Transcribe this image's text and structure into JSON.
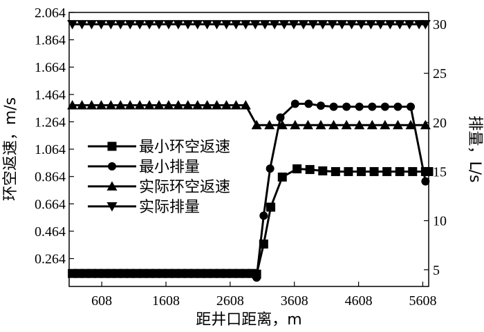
{
  "chart_data": {
    "type": "line",
    "x_ticks": [
      "608",
      "1608",
      "2608",
      "3608",
      "4608",
      "5608"
    ],
    "x_tick_values": [
      608,
      1608,
      2608,
      3608,
      4608,
      5608
    ],
    "xlim": [
      100,
      5700
    ],
    "xlabel": "距井口距离，m",
    "y_left": {
      "label": "环空返速，m/s",
      "ticks": [
        "0.264",
        "0.464",
        "0.664",
        "0.864",
        "1.064",
        "1.264",
        "1.464",
        "1.664",
        "1.864",
        "2.064"
      ],
      "tick_values": [
        0.264,
        0.464,
        0.664,
        0.864,
        1.064,
        1.264,
        1.464,
        1.664,
        1.864,
        2.064
      ],
      "lim": [
        0.06,
        2.064
      ]
    },
    "y_right": {
      "label": "排量，L/s",
      "ticks": [
        "5",
        "10",
        "15",
        "20",
        "25",
        "30"
      ],
      "tick_values": [
        5,
        10,
        15,
        20,
        25,
        30
      ],
      "lim": [
        3.3,
        31.2
      ]
    },
    "grid": false,
    "legend_position": "center-left",
    "series": [
      {
        "name": "最小环空返速",
        "marker": "square",
        "axis": "left",
        "x": [
          150,
          250,
          350,
          450,
          550,
          650,
          750,
          850,
          950,
          1050,
          1150,
          1250,
          1350,
          1450,
          1550,
          1650,
          1750,
          1850,
          1950,
          2050,
          2150,
          2250,
          2350,
          2450,
          2550,
          2650,
          2750,
          2850,
          2950,
          3020,
          3130,
          3240,
          3420,
          3650,
          3850,
          4050,
          4250,
          4450,
          4650,
          4850,
          5050,
          5250,
          5450,
          5650,
          5700
        ],
        "values": [
          0.155,
          0.155,
          0.155,
          0.155,
          0.155,
          0.155,
          0.155,
          0.155,
          0.155,
          0.155,
          0.155,
          0.155,
          0.155,
          0.155,
          0.155,
          0.155,
          0.155,
          0.155,
          0.155,
          0.155,
          0.155,
          0.155,
          0.155,
          0.155,
          0.155,
          0.155,
          0.155,
          0.155,
          0.155,
          0.15,
          0.37,
          0.64,
          0.86,
          0.92,
          0.915,
          0.905,
          0.9,
          0.9,
          0.9,
          0.9,
          0.9,
          0.9,
          0.9,
          0.9,
          0.9
        ]
      },
      {
        "name": "最小排量",
        "marker": "circle",
        "axis": "right",
        "x": [
          3020,
          3130,
          3230,
          3390,
          3620,
          3830,
          4020,
          4220,
          4420,
          4620,
          4820,
          5020,
          5220,
          5420,
          5650
        ],
        "values": [
          4.2,
          10.5,
          15.3,
          20.5,
          21.9,
          21.9,
          21.7,
          21.6,
          21.6,
          21.6,
          21.6,
          21.6,
          21.6,
          21.6,
          14.0
        ]
      },
      {
        "name": "实际环空返速",
        "marker": "triangle-up",
        "axis": "left",
        "x": [
          150,
          300,
          450,
          600,
          750,
          900,
          1050,
          1200,
          1350,
          1500,
          1650,
          1800,
          1950,
          2100,
          2250,
          2400,
          2550,
          2700,
          2850,
          3020,
          3220,
          3420,
          3620,
          3820,
          4020,
          4220,
          4420,
          4620,
          4820,
          5020,
          5220,
          5420,
          5650
        ],
        "values": [
          1.385,
          1.385,
          1.385,
          1.385,
          1.385,
          1.385,
          1.385,
          1.385,
          1.385,
          1.385,
          1.385,
          1.385,
          1.385,
          1.385,
          1.385,
          1.385,
          1.385,
          1.385,
          1.385,
          1.24,
          1.24,
          1.24,
          1.24,
          1.24,
          1.24,
          1.24,
          1.24,
          1.24,
          1.24,
          1.24,
          1.24,
          1.24,
          1.24
        ]
      },
      {
        "name": "实际排量",
        "marker": "triangle-down",
        "axis": "right",
        "x": [
          150,
          300,
          450,
          600,
          750,
          900,
          1050,
          1200,
          1350,
          1500,
          1650,
          1800,
          1950,
          2100,
          2250,
          2400,
          2550,
          2700,
          2850,
          3000,
          3150,
          3300,
          3450,
          3600,
          3750,
          3900,
          4050,
          4200,
          4350,
          4500,
          4650,
          4800,
          4950,
          5100,
          5250,
          5400,
          5550,
          5650
        ],
        "values": [
          30,
          30,
          30,
          30,
          30,
          30,
          30,
          30,
          30,
          30,
          30,
          30,
          30,
          30,
          30,
          30,
          30,
          30,
          30,
          30,
          30,
          30,
          30,
          30,
          30,
          30,
          30,
          30,
          30,
          30,
          30,
          30,
          30,
          30,
          30,
          30,
          30,
          30
        ]
      }
    ]
  }
}
